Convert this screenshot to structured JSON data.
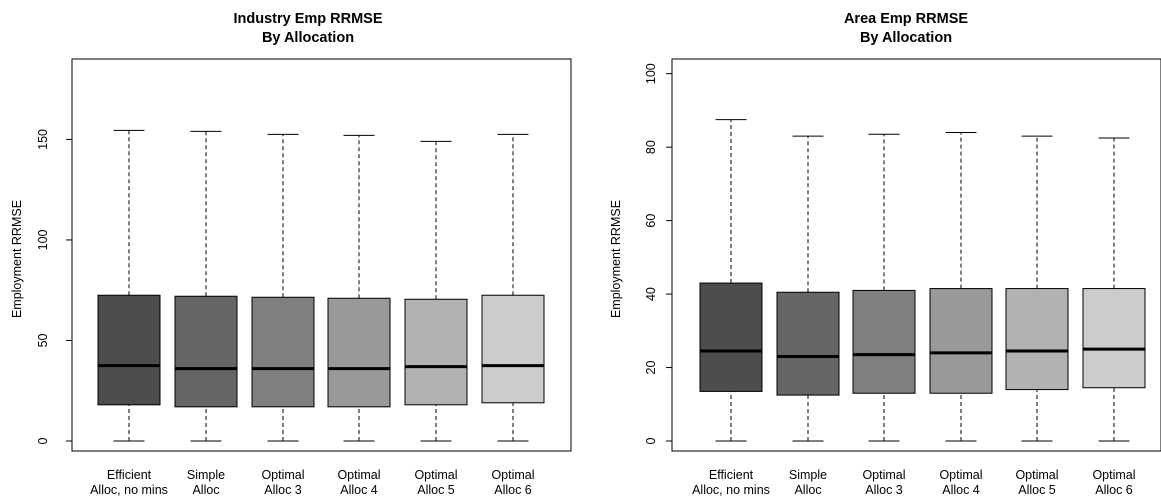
{
  "chart_data": [
    {
      "type": "boxplot",
      "title": "Industry Emp RRMSE",
      "subtitle": "By Allocation",
      "xlabel": "",
      "ylabel": "Employment RRMSE",
      "ylim": [
        0,
        190
      ],
      "yticks": [
        0,
        50,
        100,
        150
      ],
      "categories": [
        [
          "Efficient",
          "Alloc, no mins"
        ],
        [
          "Simple",
          "Alloc"
        ],
        [
          "Optimal",
          "Alloc 3"
        ],
        [
          "Optimal",
          "Alloc 4"
        ],
        [
          "Optimal",
          "Alloc 5"
        ],
        [
          "Optimal",
          "Alloc 6"
        ]
      ],
      "boxes": [
        {
          "min": 0,
          "q1": 18,
          "median": 37.5,
          "q3": 72.5,
          "max": 154.5,
          "color": "#4d4d4d"
        },
        {
          "min": 0,
          "q1": 17,
          "median": 36,
          "q3": 72,
          "max": 154,
          "color": "#666666"
        },
        {
          "min": 0,
          "q1": 17,
          "median": 36,
          "q3": 71.5,
          "max": 152.5,
          "color": "#7f7f7f"
        },
        {
          "min": 0,
          "q1": 17,
          "median": 36,
          "q3": 71,
          "max": 152,
          "color": "#999999"
        },
        {
          "min": 0,
          "q1": 18,
          "median": 37,
          "q3": 70.5,
          "max": 149,
          "color": "#b2b2b2"
        },
        {
          "min": 0,
          "q1": 19,
          "median": 37.5,
          "q3": 72.5,
          "max": 152.5,
          "color": "#cccccc"
        }
      ]
    },
    {
      "type": "boxplot",
      "title": "Area Emp RRMSE",
      "subtitle": "By Allocation",
      "xlabel": "",
      "ylabel": "Employment RRMSE",
      "ylim": [
        0,
        104
      ],
      "yticks": [
        0,
        20,
        40,
        60,
        80,
        100
      ],
      "categories": [
        [
          "Efficient",
          "Alloc, no mins"
        ],
        [
          "Simple",
          "Alloc"
        ],
        [
          "Optimal",
          "Alloc 3"
        ],
        [
          "Optimal",
          "Alloc 4"
        ],
        [
          "Optimal",
          "Alloc 5"
        ],
        [
          "Optimal",
          "Alloc 6"
        ]
      ],
      "boxes": [
        {
          "min": 0,
          "q1": 13.5,
          "median": 24.5,
          "q3": 43,
          "max": 87.5,
          "color": "#4d4d4d"
        },
        {
          "min": 0,
          "q1": 12.5,
          "median": 23,
          "q3": 40.5,
          "max": 83,
          "color": "#666666"
        },
        {
          "min": 0,
          "q1": 13,
          "median": 23.5,
          "q3": 41,
          "max": 83.5,
          "color": "#7f7f7f"
        },
        {
          "min": 0,
          "q1": 13,
          "median": 24,
          "q3": 41.5,
          "max": 84,
          "color": "#999999"
        },
        {
          "min": 0,
          "q1": 14,
          "median": 24.5,
          "q3": 41.5,
          "max": 83,
          "color": "#b2b2b2"
        },
        {
          "min": 0,
          "q1": 14.5,
          "median": 25,
          "q3": 41.5,
          "max": 82.5,
          "color": "#cccccc"
        }
      ]
    }
  ]
}
